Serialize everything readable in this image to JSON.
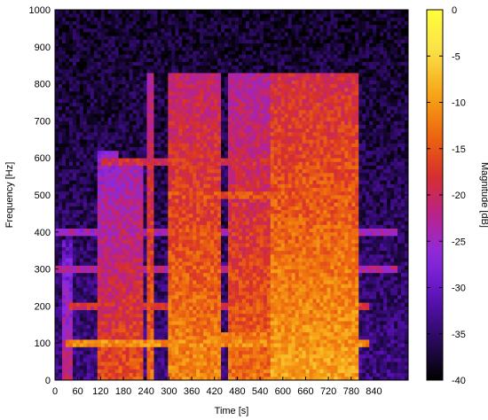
{
  "chart_data": {
    "type": "heatmap",
    "title": "",
    "xlabel": "Time [s]",
    "ylabel": "Frequency [Hz]",
    "colorbar_label": "Magnitude [dB]",
    "xlim": [
      0,
      930
    ],
    "ylim": [
      0,
      1000
    ],
    "clim": [
      -40,
      0
    ],
    "x_ticks": [
      "0",
      "60",
      "120",
      "180",
      "240",
      "300",
      "360",
      "420",
      "480",
      "540",
      "600",
      "660",
      "720",
      "780",
      "840"
    ],
    "y_ticks": [
      "0",
      "100",
      "200",
      "300",
      "400",
      "500",
      "600",
      "700",
      "800",
      "900",
      "1000"
    ],
    "colorbar_ticks": [
      "0",
      "-5",
      "-10",
      "-15",
      "-20",
      "-25",
      "-30",
      "-35",
      "-40"
    ],
    "colormap": [
      "#000000",
      "#2a0a5e",
      "#5c10b8",
      "#8a2be2",
      "#b8228c",
      "#d8302a",
      "#ee6a0e",
      "#f7a818",
      "#fae14a",
      "#ffff3c"
    ],
    "background_level_db": -34,
    "events": [
      {
        "t_start": 15,
        "t_end": 50,
        "f_max": 380,
        "level_db": -27
      },
      {
        "t_start": 115,
        "t_end": 170,
        "f_max": 620,
        "level_db": -22
      },
      {
        "t_start": 170,
        "t_end": 235,
        "f_max": 590,
        "level_db": -21
      },
      {
        "t_start": 245,
        "t_end": 265,
        "f_max": 830,
        "level_db": -19
      },
      {
        "t_start": 300,
        "t_end": 440,
        "f_max": 830,
        "level_db": -17
      },
      {
        "t_start": 460,
        "t_end": 570,
        "f_max": 830,
        "level_db": -19
      },
      {
        "t_start": 570,
        "t_end": 800,
        "f_max": 830,
        "level_db": -15
      }
    ],
    "tonal_bands": [
      {
        "freq": 100,
        "t_start": 30,
        "t_end": 830,
        "level_db": -8
      },
      {
        "freq": 120,
        "t_start": 300,
        "t_end": 800,
        "level_db": -10
      },
      {
        "freq": 200,
        "t_start": 40,
        "t_end": 830,
        "level_db": -16
      },
      {
        "freq": 300,
        "t_start": 0,
        "t_end": 900,
        "level_db": -20
      },
      {
        "freq": 400,
        "t_start": 0,
        "t_end": 900,
        "level_db": -22
      },
      {
        "freq": 500,
        "t_start": 300,
        "t_end": 800,
        "level_db": -13
      },
      {
        "freq": 590,
        "t_start": 120,
        "t_end": 800,
        "level_db": -16
      }
    ]
  }
}
